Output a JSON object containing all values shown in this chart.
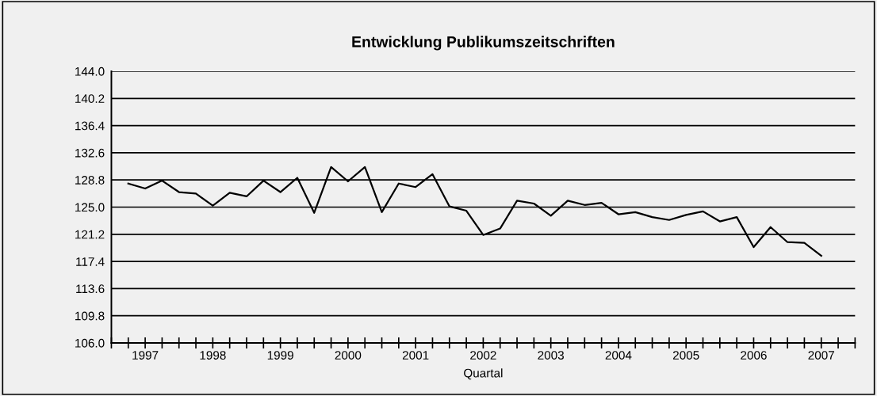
{
  "chart_data": {
    "type": "line",
    "title": "Entwicklung Publikumszeitschriften",
    "xlabel": "Quartal",
    "x": [
      1997.25,
      1997.5,
      1997.75,
      1998.0,
      1998.25,
      1998.5,
      1998.75,
      1999.0,
      1999.25,
      1999.5,
      1999.75,
      2000.0,
      2000.25,
      2000.5,
      2000.75,
      2001.0,
      2001.25,
      2001.5,
      2001.75,
      2002.0,
      2002.25,
      2002.5,
      2002.75,
      2003.0,
      2003.25,
      2003.5,
      2003.75,
      2004.0,
      2004.25,
      2004.5,
      2004.75,
      2005.0,
      2005.25,
      2005.5,
      2005.75,
      2006.0,
      2006.25,
      2006.5,
      2006.75,
      2007.0,
      2007.25,
      2007.5
    ],
    "series": [
      {
        "color": "#000000",
        "values": [
          128.3,
          127.6,
          128.7,
          127.1,
          126.9,
          125.2,
          127.0,
          126.5,
          128.7,
          127.1,
          129.1,
          124.2,
          130.6,
          128.6,
          130.6,
          124.3,
          128.3,
          127.8,
          129.6,
          125.1,
          124.5,
          121.1,
          122.0,
          125.9,
          125.5,
          123.8,
          125.9,
          125.3,
          125.6,
          124.0,
          124.3,
          123.6,
          123.2,
          123.9,
          124.4,
          123.0,
          123.6,
          119.4,
          122.2,
          120.1,
          120.0,
          118.2
        ]
      }
    ],
    "xlim": [
      1997,
      2008
    ],
    "xticks": [
      {
        "value": 1997,
        "label": null
      },
      {
        "value": 1997.25,
        "label": null
      },
      {
        "value": 1997.5,
        "label": "1997"
      },
      {
        "value": 1997.75,
        "label": null
      },
      {
        "value": 1998,
        "label": null
      },
      {
        "value": 1998.25,
        "label": null
      },
      {
        "value": 1998.5,
        "label": "1998"
      },
      {
        "value": 1998.75,
        "label": null
      },
      {
        "value": 1999,
        "label": null
      },
      {
        "value": 1999.25,
        "label": null
      },
      {
        "value": 1999.5,
        "label": "1999"
      },
      {
        "value": 1999.75,
        "label": null
      },
      {
        "value": 2000,
        "label": null
      },
      {
        "value": 2000.25,
        "label": null
      },
      {
        "value": 2000.5,
        "label": "2000"
      },
      {
        "value": 2000.75,
        "label": null
      },
      {
        "value": 2001,
        "label": null
      },
      {
        "value": 2001.25,
        "label": null
      },
      {
        "value": 2001.5,
        "label": "2001"
      },
      {
        "value": 2001.75,
        "label": null
      },
      {
        "value": 2002,
        "label": null
      },
      {
        "value": 2002.25,
        "label": null
      },
      {
        "value": 2002.5,
        "label": "2002"
      },
      {
        "value": 2002.75,
        "label": null
      },
      {
        "value": 2003,
        "label": null
      },
      {
        "value": 2003.25,
        "label": null
      },
      {
        "value": 2003.5,
        "label": "2003"
      },
      {
        "value": 2003.75,
        "label": null
      },
      {
        "value": 2004,
        "label": null
      },
      {
        "value": 2004.25,
        "label": null
      },
      {
        "value": 2004.5,
        "label": "2004"
      },
      {
        "value": 2004.75,
        "label": null
      },
      {
        "value": 2005,
        "label": null
      },
      {
        "value": 2005.25,
        "label": null
      },
      {
        "value": 2005.5,
        "label": "2005"
      },
      {
        "value": 2005.75,
        "label": null
      },
      {
        "value": 2006,
        "label": null
      },
      {
        "value": 2006.25,
        "label": null
      },
      {
        "value": 2006.5,
        "label": "2006"
      },
      {
        "value": 2006.75,
        "label": null
      },
      {
        "value": 2007,
        "label": null
      },
      {
        "value": 2007.25,
        "label": null
      },
      {
        "value": 2007.5,
        "label": "2007"
      },
      {
        "value": 2007.75,
        "label": null
      },
      {
        "value": 2008,
        "label": null
      }
    ],
    "ylim": [
      106.0,
      144.0
    ],
    "yticks": [
      {
        "value": 106.0,
        "label": "106.0"
      },
      {
        "value": 109.8,
        "label": "109.8"
      },
      {
        "value": 113.6,
        "label": "113.6"
      },
      {
        "value": 117.4,
        "label": "117.4"
      },
      {
        "value": 121.2,
        "label": "121.2"
      },
      {
        "value": 125.0,
        "label": "125.0"
      },
      {
        "value": 128.8,
        "label": "128.8"
      },
      {
        "value": 132.6,
        "label": "132.6"
      },
      {
        "value": 136.4,
        "label": "136.4"
      },
      {
        "value": 140.2,
        "label": "140.2"
      },
      {
        "value": 144.0,
        "label": "144.0"
      }
    ],
    "grid": "y",
    "marker": "none",
    "line_style": "solid"
  }
}
